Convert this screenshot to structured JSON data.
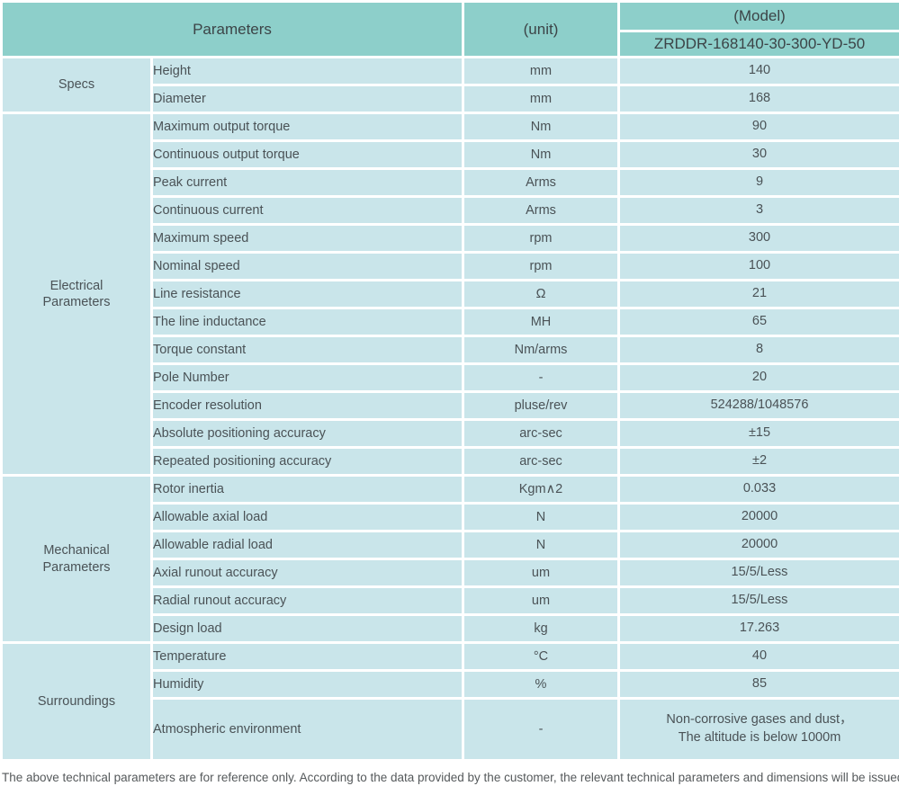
{
  "header": {
    "parameters": "Parameters",
    "unit": "(unit)",
    "model": "(Model)",
    "model_number": "ZRDDR-168140-30-300-YD-50"
  },
  "sections": [
    {
      "label": "Specs",
      "rows": [
        {
          "param": "Height",
          "unit": "mm",
          "value": "140"
        },
        {
          "param": "Diameter",
          "unit": "mm",
          "value": "168"
        }
      ]
    },
    {
      "label": "Electrical\nParameters",
      "rows": [
        {
          "param": "Maximum output torque",
          "unit": "Nm",
          "value": "90"
        },
        {
          "param": "Continuous output torque",
          "unit": "Nm",
          "value": "30"
        },
        {
          "param": "Peak current",
          "unit": "Arms",
          "value": "9"
        },
        {
          "param": "Continuous current",
          "unit": "Arms",
          "value": "3"
        },
        {
          "param": "Maximum speed",
          "unit": "rpm",
          "value": "300"
        },
        {
          "param": "Nominal speed",
          "unit": "rpm",
          "value": "100"
        },
        {
          "param": "Line resistance",
          "unit": "Ω",
          "value": "21"
        },
        {
          "param": "The line inductance",
          "unit": "MH",
          "value": "65"
        },
        {
          "param": "Torque constant",
          "unit": "Nm/arms",
          "value": "8"
        },
        {
          "param": "Pole Number",
          "unit": "-",
          "value": "20"
        },
        {
          "param": "Encoder resolution",
          "unit": "pluse/rev",
          "value": "524288/1048576"
        },
        {
          "param": "Absolute positioning accuracy",
          "unit": "arc-sec",
          "value": "±15"
        },
        {
          "param": "Repeated positioning accuracy",
          "unit": "arc-sec",
          "value": "±2"
        }
      ]
    },
    {
      "label": "Mechanical\nParameters",
      "rows": [
        {
          "param": "Rotor inertia",
          "unit": "Kgm∧2",
          "value": "0.033"
        },
        {
          "param": "Allowable axial load",
          "unit": "N",
          "value": "20000"
        },
        {
          "param": "Allowable radial load",
          "unit": "N",
          "value": "20000"
        },
        {
          "param": "Axial runout accuracy",
          "unit": "um",
          "value": "15/5/Less"
        },
        {
          "param": "Radial runout accuracy",
          "unit": "um",
          "value": "15/5/Less"
        },
        {
          "param": "Design load",
          "unit": "kg",
          "value": "17.263"
        }
      ]
    },
    {
      "label": "Surroundings",
      "rows": [
        {
          "param": "Temperature",
          "unit": "°C",
          "value": "40"
        },
        {
          "param": "Humidity",
          "unit": "%",
          "value": "85"
        },
        {
          "param": "Atmospheric environment",
          "unit": "-",
          "value": "Non-corrosive gases and dust，\nThe altitude is below 1000m"
        }
      ]
    }
  ],
  "footnote": "The above technical parameters are for reference only. According to the data provided by the customer, the relevant technical parameters and dimensions will be issued.",
  "colors": {
    "header_bg": "#8dcfca",
    "cell_bg": "#c9e5ea",
    "grid": "#ffffff"
  }
}
